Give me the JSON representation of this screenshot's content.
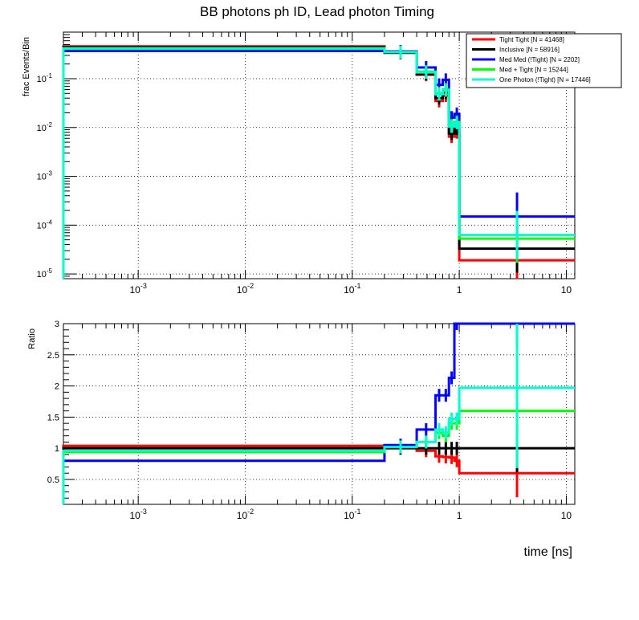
{
  "title": "BB photons ph ID, Lead photon Timing",
  "xlabel": "time [ns]",
  "chart_data": [
    {
      "type": "line",
      "panel": "top",
      "ylabel": "frac Events/Bin",
      "xscale": "log",
      "yscale": "log",
      "xlim": [
        0.0002,
        12
      ],
      "ylim": [
        8e-06,
        0.9
      ],
      "grid": true,
      "legend_position": "top-right",
      "x_ticks": [
        {
          "v": 0.001,
          "m": "10",
          "e": "-3"
        },
        {
          "v": 0.01,
          "m": "10",
          "e": "-2"
        },
        {
          "v": 0.1,
          "m": "10",
          "e": "-1"
        },
        {
          "v": 1,
          "m": "1",
          "e": ""
        },
        {
          "v": 10,
          "m": "10",
          "e": ""
        }
      ],
      "y_ticks": [
        {
          "v": 1e-05,
          "m": "10",
          "e": "-5"
        },
        {
          "v": 0.0001,
          "m": "10",
          "e": "-4"
        },
        {
          "v": 0.001,
          "m": "10",
          "e": "-3"
        },
        {
          "v": 0.01,
          "m": "10",
          "e": "-2"
        },
        {
          "v": 0.1,
          "m": "10",
          "e": "-1"
        }
      ],
      "bin_edges": [
        0.0002,
        0.2,
        0.4,
        0.6,
        0.7,
        0.8,
        0.9,
        1.0,
        12
      ],
      "series": [
        {
          "name": "Tight Tight [N = 41468]",
          "color": "#ff0000",
          "values": [
            0.46,
            0.36,
            0.12,
            0.035,
            0.045,
            0.0065,
            0.008,
            1.9e-05
          ]
        },
        {
          "name": "Inclusive [N = 58916]",
          "color": "#000000",
          "values": [
            0.44,
            0.34,
            0.125,
            0.04,
            0.052,
            0.0075,
            0.0095,
            3.3e-05
          ]
        },
        {
          "name": "Med Med (!Tight) [N = 2202]",
          "color": "#0000ff",
          "values": [
            0.37,
            0.36,
            0.17,
            0.075,
            0.095,
            0.016,
            0.019,
            0.00015
          ]
        },
        {
          "name": "Med + Tight [N = 15244]",
          "color": "#00ff00",
          "values": [
            0.41,
            0.35,
            0.14,
            0.05,
            0.06,
            0.011,
            0.013,
            5.3e-05
          ]
        },
        {
          "name": "One Photon (!Tight) [N = 17446]",
          "color": "#00ffcc",
          "values": [
            0.42,
            0.35,
            0.135,
            0.048,
            0.058,
            0.0105,
            0.0125,
            6.3e-05
          ]
        }
      ]
    },
    {
      "type": "line",
      "panel": "bottom",
      "ylabel": "Ratio",
      "xscale": "log",
      "yscale": "linear",
      "xlim": [
        0.0002,
        12
      ],
      "ylim": [
        0.1,
        3
      ],
      "grid": true,
      "x_ticks": [
        {
          "v": 0.001,
          "m": "10",
          "e": "-3"
        },
        {
          "v": 0.01,
          "m": "10",
          "e": "-2"
        },
        {
          "v": 0.1,
          "m": "10",
          "e": "-1"
        },
        {
          "v": 1,
          "m": "1",
          "e": ""
        },
        {
          "v": 10,
          "m": "10",
          "e": ""
        }
      ],
      "y_ticks": [
        {
          "v": 0.5,
          "label": "0.5"
        },
        {
          "v": 1,
          "label": "1"
        },
        {
          "v": 1.5,
          "label": "1.5"
        },
        {
          "v": 2,
          "label": "2"
        },
        {
          "v": 2.5,
          "label": "2.5"
        },
        {
          "v": 3,
          "label": "3"
        }
      ],
      "bin_edges": [
        0.0002,
        0.2,
        0.4,
        0.6,
        0.7,
        0.8,
        0.9,
        1.0,
        12
      ],
      "series": [
        {
          "name": "Tight Tight [N = 41468]",
          "color": "#ff0000",
          "values": [
            1.04,
            1.04,
            0.96,
            0.87,
            0.86,
            0.85,
            0.8,
            0.6
          ]
        },
        {
          "name": "Inclusive [N = 58916]",
          "color": "#000000",
          "values": [
            1.0,
            1.0,
            1.0,
            1.0,
            1.0,
            1.0,
            1.0,
            1.0
          ]
        },
        {
          "name": "Med Med (!Tight) [N = 2202]",
          "color": "#0000ff",
          "values": [
            0.8,
            1.05,
            1.3,
            1.85,
            1.85,
            2.13,
            3.0,
            3.0
          ]
        },
        {
          "name": "Med + Tight [N = 15244]",
          "color": "#00ff00",
          "values": [
            0.94,
            1.02,
            1.1,
            1.25,
            1.2,
            1.4,
            1.4,
            1.6
          ]
        },
        {
          "name": "One Photon (!Tight) [N = 17446]",
          "color": "#00ffcc",
          "values": [
            0.96,
            1.02,
            1.1,
            1.3,
            1.25,
            1.47,
            1.47,
            1.97
          ]
        }
      ]
    }
  ]
}
